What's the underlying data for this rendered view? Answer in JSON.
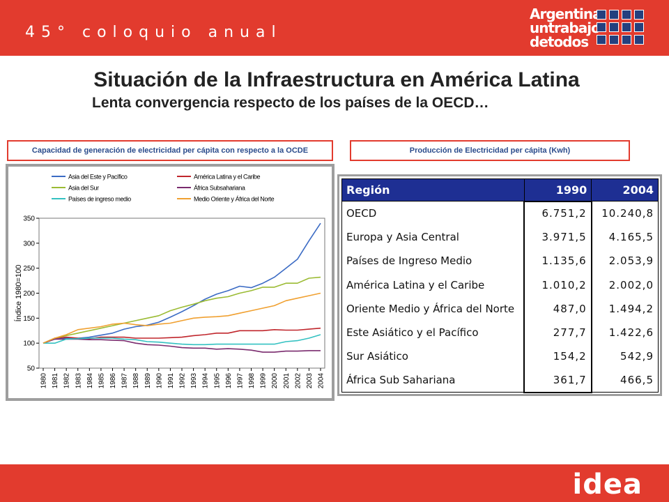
{
  "header": {
    "tagline": "45° coloquio anual",
    "logo_lines": [
      "Argentina",
      "untrabajo",
      "detodos"
    ]
  },
  "title": "Situación de la Infraestructura en América Latina",
  "subtitle": "Lenta convergencia respecto de los países de la OECD…",
  "left_label": "Capacidad de generación de electricidad per cápita con respecto a la OCDE",
  "right_label": "Producción de Electricidad per cápita (Kwh)",
  "footer": {
    "logo": "idea"
  },
  "colors": {
    "brand_red": "#e23b2e",
    "table_header": "#1e2f93"
  },
  "chart_data": {
    "type": "line",
    "title": "",
    "xlabel": "",
    "ylabel": "Índice 1980=100",
    "ylim": [
      50,
      350
    ],
    "yticks": [
      50,
      100,
      150,
      200,
      250,
      300,
      350
    ],
    "grid": false,
    "legend_position": "top",
    "x": [
      "1980",
      "1981",
      "1982",
      "1983",
      "1984",
      "1985",
      "1986",
      "1987",
      "1988",
      "1989",
      "1990",
      "1991",
      "1992",
      "1993",
      "1994",
      "1995",
      "1996",
      "1997",
      "1998",
      "1999",
      "2000",
      "2001",
      "2002",
      "2003",
      "2004"
    ],
    "series": [
      {
        "name": "Asia del Este y Pacífico",
        "color": "#3b6bc4",
        "values": [
          100,
          108,
          110,
          110,
          112,
          116,
          120,
          128,
          133,
          136,
          142,
          152,
          163,
          175,
          188,
          198,
          205,
          214,
          211,
          220,
          232,
          250,
          268,
          305,
          340
        ]
      },
      {
        "name": "América Latina y el Caribe",
        "color": "#c0262c",
        "values": [
          100,
          110,
          112,
          110,
          109,
          112,
          112,
          112,
          110,
          110,
          110,
          111,
          112,
          115,
          117,
          120,
          120,
          125,
          125,
          125,
          127,
          126,
          126,
          128,
          130
        ]
      },
      {
        "name": "Asia del Sur",
        "color": "#9bbb33",
        "values": [
          100,
          110,
          115,
          120,
          125,
          130,
          135,
          140,
          145,
          150,
          155,
          165,
          172,
          178,
          185,
          190,
          193,
          200,
          205,
          212,
          212,
          220,
          220,
          230,
          232
        ]
      },
      {
        "name": "África Subsahariana",
        "color": "#7a2b6e",
        "values": [
          100,
          108,
          108,
          108,
          107,
          107,
          106,
          105,
          100,
          97,
          96,
          94,
          91,
          90,
          90,
          88,
          89,
          88,
          86,
          82,
          82,
          84,
          84,
          85,
          85
        ]
      },
      {
        "name": "Países de ingreso medio",
        "color": "#33c1c1",
        "values": [
          100,
          100,
          108,
          109,
          110,
          110,
          110,
          108,
          107,
          103,
          102,
          100,
          98,
          97,
          97,
          98,
          98,
          98,
          98,
          98,
          98,
          103,
          105,
          110,
          117
        ]
      },
      {
        "name": "Medio Oriente y África del Norte",
        "color": "#f0a030",
        "values": [
          100,
          110,
          117,
          127,
          130,
          133,
          138,
          140,
          137,
          135,
          138,
          140,
          145,
          150,
          152,
          153,
          155,
          160,
          165,
          170,
          175,
          185,
          190,
          195,
          200
        ]
      }
    ]
  },
  "table": {
    "headers": [
      "Región",
      "1990",
      "2004"
    ],
    "rows": [
      [
        "OECD",
        "6.751,2",
        "10.240,8"
      ],
      [
        "Europa y Asia Central",
        "3.971,5",
        "4.165,5"
      ],
      [
        "Países de Ingreso Medio",
        "1.135,6",
        "2.053,9"
      ],
      [
        "América Latina y el Caribe",
        "1.010,2",
        "2.002,0"
      ],
      [
        "Oriente Medio y África del Norte",
        "487,0",
        "1.494,2"
      ],
      [
        "Este Asiático y el Pacífico",
        "277,7",
        "1.422,6"
      ],
      [
        "Sur Asiático",
        "154,2",
        "542,9"
      ],
      [
        "África Sub Sahariana",
        "361,7",
        "466,5"
      ]
    ]
  }
}
